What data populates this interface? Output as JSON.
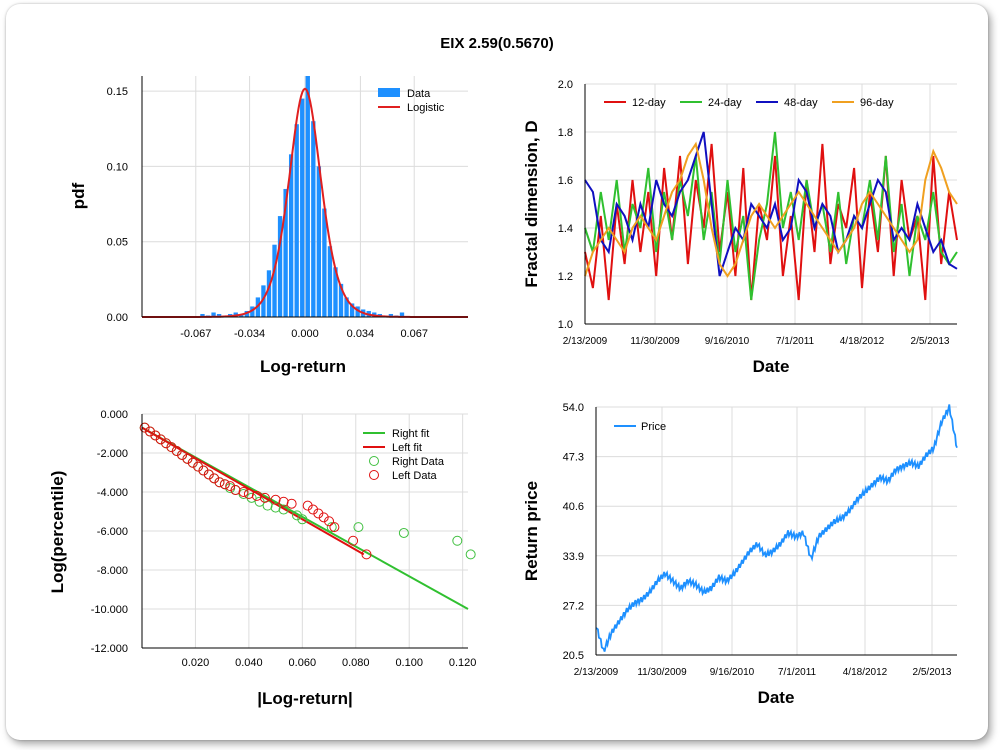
{
  "title": "EIX 2.59(0.5670)",
  "chart_data": [
    {
      "type": "bar",
      "id": "histogram",
      "xlabel": "Log-return",
      "ylabel": "pdf",
      "xlim": [
        -0.1,
        0.1
      ],
      "ylim": [
        0,
        0.16
      ],
      "xticks": [
        -0.067,
        -0.034,
        0.0,
        0.034,
        0.067
      ],
      "xtick_labels": [
        "-0.067",
        "-0.034",
        "0.000",
        "0.034",
        "0.067"
      ],
      "yticks": [
        0.0,
        0.05,
        0.1,
        0.15
      ],
      "ytick_labels": [
        "0.00",
        "0.05",
        "0.10",
        "0.15"
      ],
      "grid": true,
      "legend_position": "top-right",
      "series": [
        {
          "name": "Data",
          "color": "#1e90ff",
          "bin_width": 0.0034,
          "x": [
            -0.0629,
            -0.0595,
            -0.0561,
            -0.0527,
            -0.0493,
            -0.0459,
            -0.0425,
            -0.0391,
            -0.0357,
            -0.0323,
            -0.0289,
            -0.0255,
            -0.0221,
            -0.0187,
            -0.0153,
            -0.0119,
            -0.0085,
            -0.0051,
            -0.0017,
            0.0017,
            0.0051,
            0.0085,
            0.0119,
            0.0153,
            0.0187,
            0.0221,
            0.0255,
            0.0289,
            0.0323,
            0.0357,
            0.0391,
            0.0425,
            0.0459,
            0.0493,
            0.0527,
            0.0561,
            0.0595
          ],
          "values": [
            0.002,
            0.001,
            0.003,
            0.002,
            0.001,
            0.002,
            0.003,
            0.002,
            0.004,
            0.007,
            0.013,
            0.021,
            0.031,
            0.048,
            0.067,
            0.085,
            0.108,
            0.128,
            0.145,
            0.16,
            0.13,
            0.1,
            0.072,
            0.047,
            0.033,
            0.022,
            0.013,
            0.009,
            0.007,
            0.005,
            0.004,
            0.003,
            0.002,
            0.001,
            0.002,
            0.001,
            0.003
          ]
        },
        {
          "name": "Logistic",
          "color": "#e02020",
          "type": "line",
          "logistic_scale": 0.0066
        }
      ]
    },
    {
      "type": "line",
      "id": "fractal",
      "xlabel": "Date",
      "ylabel": "Fractal dimension, D",
      "ylim": [
        1.0,
        2.0
      ],
      "yticks": [
        1.0,
        1.2,
        1.4,
        1.6,
        1.8,
        2.0
      ],
      "ytick_labels": [
        "1.0",
        "1.2",
        "1.4",
        "1.6",
        "1.8",
        "2.0"
      ],
      "xtick_labels": [
        "2/13/2009",
        "11/30/2009",
        "9/16/2010",
        "7/1/2011",
        "4/18/2012",
        "2/5/2013"
      ],
      "grid": true,
      "legend_position": "top",
      "series": [
        {
          "name": "12-day",
          "color": "#e01010",
          "values": [
            1.3,
            1.15,
            1.45,
            1.1,
            1.5,
            1.25,
            1.6,
            1.3,
            1.55,
            1.2,
            1.65,
            1.35,
            1.7,
            1.25,
            1.6,
            1.4,
            1.75,
            1.3,
            1.55,
            1.2,
            1.65,
            1.1,
            1.5,
            1.35,
            1.7,
            1.2,
            1.45,
            1.1,
            1.6,
            1.3,
            1.75,
            1.25,
            1.5,
            1.4,
            1.65,
            1.15,
            1.55,
            1.3,
            1.7,
            1.2,
            1.6,
            1.35,
            1.45,
            1.1,
            1.7,
            1.25,
            1.55,
            1.35
          ]
        },
        {
          "name": "24-day",
          "color": "#30c030",
          "values": [
            1.4,
            1.3,
            1.55,
            1.35,
            1.6,
            1.3,
            1.5,
            1.4,
            1.65,
            1.3,
            1.55,
            1.35,
            1.6,
            1.45,
            1.7,
            1.35,
            1.55,
            1.25,
            1.6,
            1.3,
            1.45,
            1.1,
            1.35,
            1.5,
            1.8,
            1.4,
            1.55,
            1.35,
            1.6,
            1.4,
            1.5,
            1.3,
            1.55,
            1.25,
            1.45,
            1.4,
            1.6,
            1.35,
            1.7,
            1.3,
            1.5,
            1.2,
            1.45,
            1.35,
            1.55,
            1.3,
            1.25,
            1.3
          ]
        },
        {
          "name": "48-day",
          "color": "#1010c0",
          "values": [
            1.6,
            1.55,
            1.35,
            1.3,
            1.5,
            1.45,
            1.35,
            1.5,
            1.4,
            1.6,
            1.5,
            1.45,
            1.55,
            1.6,
            1.7,
            1.8,
            1.5,
            1.2,
            1.3,
            1.4,
            1.35,
            1.5,
            1.45,
            1.4,
            1.5,
            1.35,
            1.4,
            1.6,
            1.55,
            1.4,
            1.5,
            1.45,
            1.3,
            1.35,
            1.45,
            1.4,
            1.5,
            1.6,
            1.55,
            1.35,
            1.4,
            1.35,
            1.5,
            1.4,
            1.3,
            1.35,
            1.25,
            1.23
          ]
        },
        {
          "name": "96-day",
          "color": "#f0a020",
          "values": [
            1.2,
            1.3,
            1.35,
            1.4,
            1.35,
            1.3,
            1.4,
            1.45,
            1.4,
            1.35,
            1.45,
            1.55,
            1.6,
            1.7,
            1.75,
            1.6,
            1.4,
            1.25,
            1.2,
            1.25,
            1.35,
            1.45,
            1.5,
            1.45,
            1.4,
            1.45,
            1.5,
            1.55,
            1.5,
            1.45,
            1.4,
            1.35,
            1.3,
            1.35,
            1.4,
            1.5,
            1.55,
            1.5,
            1.45,
            1.4,
            1.35,
            1.3,
            1.35,
            1.6,
            1.72,
            1.65,
            1.55,
            1.5
          ]
        }
      ]
    },
    {
      "type": "scatter",
      "id": "tails",
      "xlabel": "|Log-return|",
      "ylabel": "Log(percentile)",
      "xlim": [
        0.0,
        0.122
      ],
      "ylim": [
        -12.0,
        0.0
      ],
      "xticks": [
        0.02,
        0.04,
        0.06,
        0.08,
        0.1,
        0.12
      ],
      "xtick_labels": [
        "0.020",
        "0.040",
        "0.060",
        "0.080",
        "0.100",
        "0.120"
      ],
      "yticks": [
        0,
        -2,
        -4,
        -6,
        -8,
        -10,
        -12
      ],
      "ytick_labels": [
        "0.000",
        "-2.000",
        "-4.000",
        "-6.000",
        "-8.000",
        "-10.000",
        "-12.000"
      ],
      "grid": true,
      "legend_position": "top-right",
      "series": [
        {
          "name": "Right fit",
          "type": "line",
          "color": "#30c030",
          "x": [
            0.0,
            0.122
          ],
          "y": [
            -0.7,
            -10.0
          ]
        },
        {
          "name": "Left fit",
          "type": "line",
          "color": "#e01010",
          "x": [
            0.0,
            0.083
          ],
          "y": [
            -0.7,
            -7.2
          ]
        },
        {
          "name": "Right Data",
          "type": "scatter",
          "color": "#40c040",
          "x": [
            0.001,
            0.003,
            0.005,
            0.007,
            0.009,
            0.011,
            0.013,
            0.015,
            0.017,
            0.019,
            0.021,
            0.023,
            0.025,
            0.027,
            0.029,
            0.031,
            0.033,
            0.035,
            0.038,
            0.041,
            0.044,
            0.047,
            0.05,
            0.053,
            0.058,
            0.06,
            0.071,
            0.081,
            0.098,
            0.118,
            0.123
          ],
          "y": [
            -0.7,
            -0.9,
            -1.1,
            -1.3,
            -1.5,
            -1.7,
            -1.9,
            -2.1,
            -2.3,
            -2.5,
            -2.7,
            -2.9,
            -3.1,
            -3.3,
            -3.5,
            -3.6,
            -3.8,
            -3.9,
            -4.1,
            -4.3,
            -4.5,
            -4.7,
            -4.8,
            -4.9,
            -5.2,
            -5.4,
            -5.8,
            -5.8,
            -6.1,
            -6.5,
            -7.2
          ]
        },
        {
          "name": "Left Data",
          "type": "scatter",
          "color": "#e01010",
          "x": [
            0.001,
            0.003,
            0.005,
            0.007,
            0.009,
            0.011,
            0.013,
            0.015,
            0.017,
            0.019,
            0.021,
            0.023,
            0.025,
            0.027,
            0.029,
            0.031,
            0.033,
            0.035,
            0.038,
            0.04,
            0.043,
            0.046,
            0.05,
            0.053,
            0.056,
            0.062,
            0.064,
            0.066,
            0.068,
            0.07,
            0.072,
            0.079,
            0.084
          ],
          "y": [
            -0.7,
            -0.9,
            -1.1,
            -1.3,
            -1.5,
            -1.7,
            -1.9,
            -2.1,
            -2.3,
            -2.5,
            -2.7,
            -2.9,
            -3.1,
            -3.3,
            -3.5,
            -3.6,
            -3.7,
            -3.9,
            -4.0,
            -4.1,
            -4.2,
            -4.3,
            -4.4,
            -4.5,
            -4.6,
            -4.7,
            -4.9,
            -5.1,
            -5.3,
            -5.5,
            -5.8,
            -6.5,
            -7.2
          ]
        }
      ]
    },
    {
      "type": "line",
      "id": "price",
      "xlabel": "Date",
      "ylabel": "Return price",
      "ylim": [
        20.5,
        54.0
      ],
      "yticks": [
        20.5,
        27.2,
        33.9,
        40.6,
        47.3,
        54.0
      ],
      "ytick_labels": [
        "20.5",
        "27.2",
        "33.9",
        "40.6",
        "47.3",
        "54.0"
      ],
      "xtick_labels": [
        "2/13/2009",
        "11/30/2009",
        "9/16/2010",
        "7/1/2011",
        "4/18/2012",
        "2/5/2013"
      ],
      "grid": true,
      "legend_position": "top-left",
      "series": [
        {
          "name": "Price",
          "color": "#1e90ff",
          "values": [
            24.5,
            21.0,
            23.5,
            25.0,
            26.5,
            27.5,
            28.0,
            29.0,
            30.5,
            31.5,
            30.5,
            29.5,
            30.5,
            30.0,
            29.0,
            29.5,
            31.0,
            30.5,
            31.5,
            33.0,
            34.5,
            35.5,
            34.0,
            34.5,
            35.5,
            37.0,
            36.5,
            37.0,
            33.5,
            36.5,
            37.5,
            38.5,
            39.0,
            40.0,
            41.5,
            42.5,
            43.5,
            44.5,
            44.0,
            45.5,
            46.0,
            46.5,
            46.0,
            47.5,
            48.5,
            52.0,
            54.0,
            48.5
          ]
        }
      ]
    }
  ]
}
